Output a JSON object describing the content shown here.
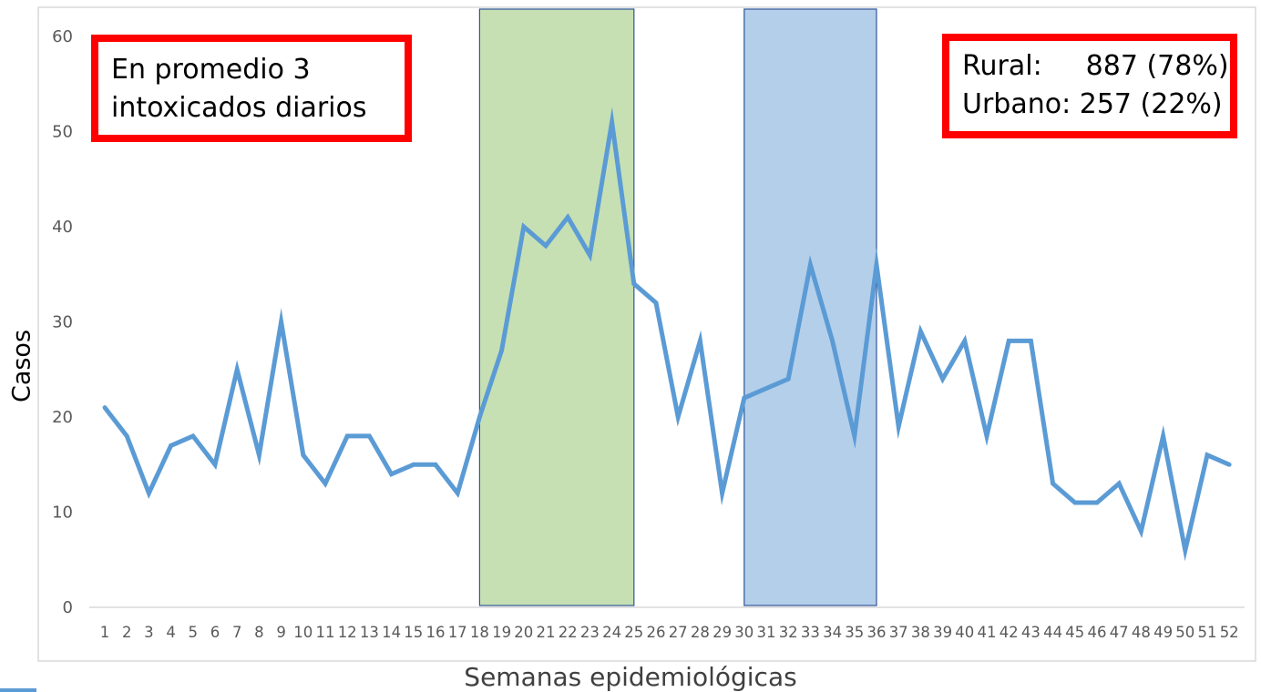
{
  "chart_data": {
    "type": "line",
    "title": "",
    "xlabel": "Semanas epidemiológicas",
    "ylabel": "Casos",
    "ylim": [
      0,
      60
    ],
    "yticks": [
      0,
      10,
      20,
      30,
      40,
      50,
      60
    ],
    "grid": false,
    "categories": [
      "1",
      "2",
      "3",
      "4",
      "5",
      "6",
      "7",
      "8",
      "9",
      "10",
      "11",
      "12",
      "13",
      "14",
      "15",
      "16",
      "17",
      "18",
      "19",
      "20",
      "21",
      "22",
      "23",
      "24",
      "25",
      "26",
      "27",
      "28",
      "29",
      "30",
      "31",
      "32",
      "33",
      "34",
      "35",
      "36",
      "37",
      "38",
      "39",
      "40",
      "41",
      "42",
      "43",
      "44",
      "45",
      "46",
      "47",
      "48",
      "49",
      "50",
      "51",
      "52"
    ],
    "series": [
      {
        "name": "",
        "color": "#5b9bd5",
        "values": [
          21,
          18,
          12,
          17,
          18,
          15,
          25,
          16,
          30,
          16,
          13,
          18,
          18,
          14,
          15,
          15,
          12,
          20,
          27,
          40,
          38,
          41,
          37,
          51,
          34,
          32,
          20,
          28,
          12,
          22,
          23,
          24,
          36,
          28,
          18,
          36,
          19,
          29,
          24,
          28,
          18,
          28,
          28,
          13,
          11,
          11,
          13,
          8,
          18,
          6,
          16,
          15
        ]
      }
    ],
    "highlight_bands": [
      {
        "from_week": 18,
        "to_week": 25,
        "fill": "#c6e0b4",
        "stroke": "#2f5597"
      },
      {
        "from_week": 30,
        "to_week": 36,
        "fill": "#b4cfea",
        "stroke": "#2f5597"
      }
    ]
  },
  "annotations": {
    "left": [
      "En promedio 3",
      "intoxicados diarios"
    ],
    "right": [
      {
        "label": "Rural:",
        "value": "887 (78%)"
      },
      {
        "label": "Urbano:",
        "value": "257 (22%)"
      }
    ]
  },
  "colors": {
    "line": "#5b9bd5",
    "annotation_border": "#ff0000",
    "axis_text": "#595959"
  }
}
